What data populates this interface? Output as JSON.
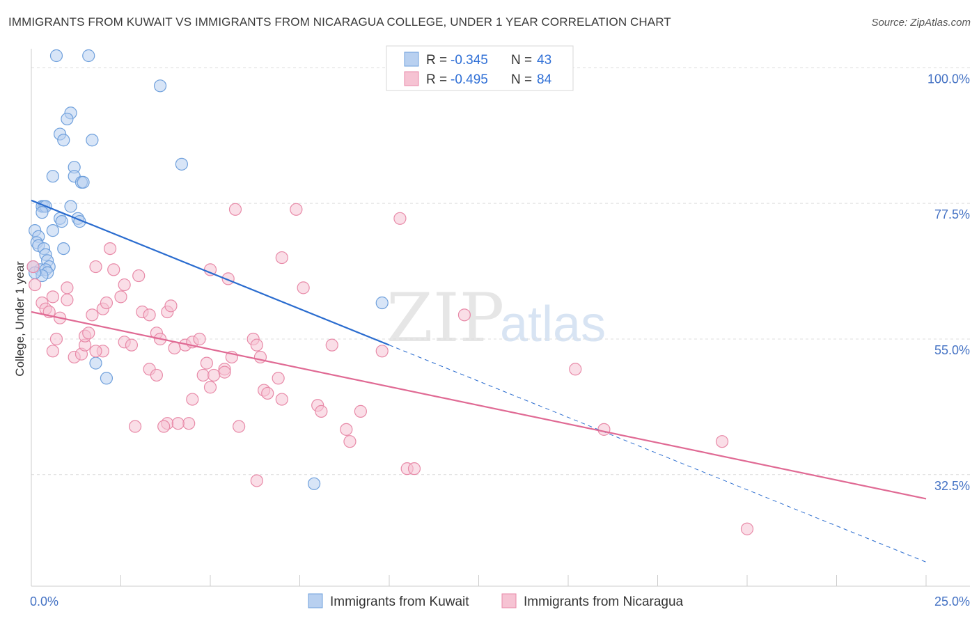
{
  "header": {
    "title": "IMMIGRANTS FROM KUWAIT VS IMMIGRANTS FROM NICARAGUA COLLEGE, UNDER 1 YEAR CORRELATION CHART",
    "source": "Source: ZipAtlas.com"
  },
  "watermark": {
    "part1": "ZIP",
    "part2": "atlas"
  },
  "chart_data": {
    "type": "scatter",
    "title": "IMMIGRANTS FROM KUWAIT VS IMMIGRANTS FROM NICARAGUA COLLEGE, UNDER 1 YEAR CORRELATION CHART",
    "xlabel": "",
    "ylabel": "College, Under 1 year",
    "xlim": [
      0,
      25
    ],
    "ylim": [
      14,
      102
    ],
    "x_tick_labels": {
      "min": "0.0%",
      "max": "25.0%"
    },
    "y_ticks": [
      {
        "value": 100,
        "label": "100.0%"
      },
      {
        "value": 77.5,
        "label": "77.5%"
      },
      {
        "value": 55,
        "label": "55.0%"
      },
      {
        "value": 32.5,
        "label": "32.5%"
      }
    ],
    "grid": true,
    "legend_position": "top-center",
    "series": [
      {
        "name": "Immigrants from Kuwait",
        "color": "#6fa0dc",
        "fill": "#b8d0f0",
        "R": "-0.345",
        "N": "43",
        "trend": {
          "x0": 0,
          "y0": 78.0,
          "x1": 10,
          "y1": 54.0,
          "dash_to_x": 25,
          "dash_to_y": 18.0,
          "color": "#2a6ccf"
        },
        "points": [
          [
            0.7,
            102
          ],
          [
            1.6,
            102
          ],
          [
            3.6,
            97
          ],
          [
            1.1,
            92.5
          ],
          [
            1.0,
            91.5
          ],
          [
            0.8,
            89
          ],
          [
            0.9,
            88
          ],
          [
            1.7,
            88
          ],
          [
            4.2,
            84
          ],
          [
            1.2,
            83.5
          ],
          [
            1.2,
            82
          ],
          [
            0.6,
            82
          ],
          [
            1.4,
            81
          ],
          [
            1.45,
            81
          ],
          [
            0.3,
            77
          ],
          [
            0.35,
            77
          ],
          [
            0.4,
            77
          ],
          [
            1.1,
            77
          ],
          [
            0.3,
            76
          ],
          [
            0.8,
            75
          ],
          [
            1.3,
            75
          ],
          [
            1.35,
            74.5
          ],
          [
            0.85,
            74.5
          ],
          [
            0.1,
            73
          ],
          [
            0.6,
            73
          ],
          [
            0.2,
            72
          ],
          [
            0.15,
            71
          ],
          [
            0.2,
            70.5
          ],
          [
            0.35,
            70
          ],
          [
            0.9,
            70
          ],
          [
            0.4,
            69
          ],
          [
            0.45,
            68
          ],
          [
            0.5,
            67
          ],
          [
            0.25,
            66.5
          ],
          [
            0.4,
            66.5
          ],
          [
            0.45,
            66
          ],
          [
            0.3,
            65.5
          ],
          [
            9.8,
            61
          ],
          [
            1.8,
            51
          ],
          [
            2.1,
            48.5
          ],
          [
            7.9,
            31
          ],
          [
            0.05,
            67
          ],
          [
            0.1,
            66
          ]
        ]
      },
      {
        "name": "Immigrants from Nicaragua",
        "color": "#e88aa8",
        "fill": "#f6c3d3",
        "R": "-0.495",
        "N": "84",
        "trend": {
          "x0": 0,
          "y0": 59.5,
          "x1": 25,
          "y1": 28.5,
          "color": "#e06a94"
        },
        "points": [
          [
            0.05,
            67
          ],
          [
            0.1,
            64
          ],
          [
            0.3,
            61
          ],
          [
            0.4,
            60
          ],
          [
            0.5,
            59.5
          ],
          [
            0.6,
            62
          ],
          [
            1.0,
            61.5
          ],
          [
            1.0,
            63.5
          ],
          [
            0.8,
            58.5
          ],
          [
            0.7,
            55
          ],
          [
            0.6,
            53
          ],
          [
            1.2,
            52
          ],
          [
            1.4,
            52.5
          ],
          [
            1.5,
            54
          ],
          [
            1.5,
            55.5
          ],
          [
            1.6,
            56
          ],
          [
            1.7,
            59
          ],
          [
            2.0,
            60
          ],
          [
            2.1,
            61
          ],
          [
            2.0,
            53
          ],
          [
            1.8,
            53
          ],
          [
            1.8,
            67
          ],
          [
            2.3,
            66.5
          ],
          [
            2.6,
            64
          ],
          [
            2.5,
            62
          ],
          [
            2.2,
            70
          ],
          [
            3.0,
            65.5
          ],
          [
            3.1,
            59.5
          ],
          [
            3.3,
            59
          ],
          [
            3.5,
            56
          ],
          [
            3.6,
            55
          ],
          [
            3.3,
            50
          ],
          [
            3.5,
            49
          ],
          [
            2.6,
            54.5
          ],
          [
            2.8,
            54
          ],
          [
            3.8,
            59.5
          ],
          [
            3.9,
            60.5
          ],
          [
            4.0,
            53.5
          ],
          [
            4.3,
            54
          ],
          [
            4.5,
            54.5
          ],
          [
            4.7,
            55
          ],
          [
            4.8,
            49
          ],
          [
            4.9,
            51
          ],
          [
            4.5,
            45
          ],
          [
            5.0,
            47
          ],
          [
            4.4,
            41
          ],
          [
            3.8,
            41
          ],
          [
            4.1,
            41
          ],
          [
            3.7,
            40.5
          ],
          [
            2.9,
            40.5
          ],
          [
            5.0,
            66.5
          ],
          [
            5.5,
            65
          ],
          [
            5.6,
            52
          ],
          [
            5.4,
            50
          ],
          [
            5.4,
            49.5
          ],
          [
            5.1,
            49
          ],
          [
            6.2,
            55
          ],
          [
            6.3,
            54
          ],
          [
            6.4,
            52
          ],
          [
            6.5,
            46.5
          ],
          [
            6.6,
            46
          ],
          [
            6.9,
            48.5
          ],
          [
            7.0,
            45
          ],
          [
            7.4,
            76.5
          ],
          [
            7.0,
            68.5
          ],
          [
            7.6,
            63.5
          ],
          [
            8.0,
            44
          ],
          [
            8.1,
            43
          ],
          [
            8.4,
            54
          ],
          [
            8.8,
            40
          ],
          [
            8.9,
            38
          ],
          [
            9.2,
            43
          ],
          [
            9.8,
            53
          ],
          [
            10.3,
            75
          ],
          [
            10.5,
            33.5
          ],
          [
            10.7,
            33.5
          ],
          [
            12.1,
            59
          ],
          [
            15.2,
            50
          ],
          [
            16.0,
            40
          ],
          [
            19.3,
            38
          ],
          [
            20.0,
            23.5
          ],
          [
            5.7,
            76.5
          ],
          [
            5.8,
            40.5
          ],
          [
            6.3,
            31.5
          ]
        ]
      }
    ]
  },
  "legend": {
    "r_label": "R =",
    "n_label": "N =",
    "entries": [
      {
        "r": "-0.345",
        "n": "43"
      },
      {
        "r": "-0.495",
        "n": "84"
      }
    ]
  },
  "bottom_legend": {
    "kuwait": "Immigrants from Kuwait",
    "nicaragua": "Immigrants from Nicaragua"
  }
}
